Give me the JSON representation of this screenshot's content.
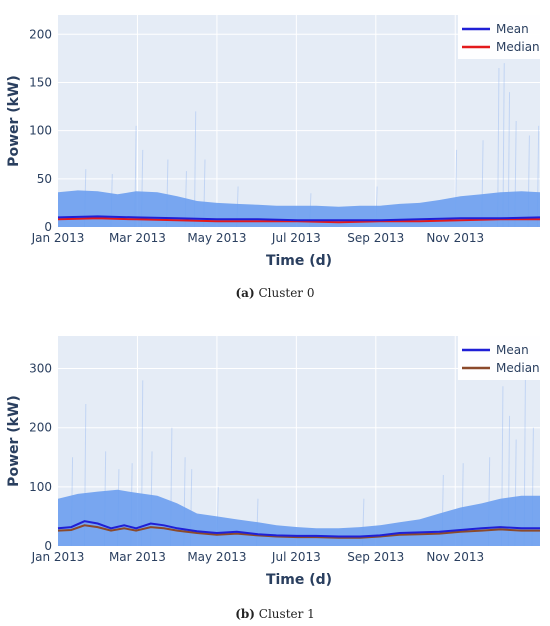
{
  "chart_data": [
    {
      "type": "line",
      "caption_label": "(a)",
      "caption_text": "Cluster 0",
      "xlabel": "Time (d)",
      "ylabel": "Power (kW)",
      "x_ticks": [
        "Jan 2013",
        "Mar 2013",
        "May 2013",
        "Jul 2013",
        "Sep 2013",
        "Nov 2013"
      ],
      "ylim": [
        0,
        220
      ],
      "y_ticks": [
        0,
        50,
        100,
        150,
        200
      ],
      "grid": true,
      "legend_position": "top-right",
      "colors": {
        "band": "#6b9ef0",
        "mean": "#1f1fd6",
        "median": "#e31a1c",
        "plot_bg": "#e5ecf6",
        "spike": "#7fa8f0"
      },
      "band_upper": [
        [
          0,
          36
        ],
        [
          15,
          38
        ],
        [
          30,
          37
        ],
        [
          45,
          34
        ],
        [
          59,
          37
        ],
        [
          75,
          36
        ],
        [
          90,
          32
        ],
        [
          105,
          27
        ],
        [
          120,
          25
        ],
        [
          135,
          24
        ],
        [
          151,
          23
        ],
        [
          165,
          22
        ],
        [
          181,
          22
        ],
        [
          195,
          22
        ],
        [
          212,
          21
        ],
        [
          228,
          22
        ],
        [
          243,
          22
        ],
        [
          258,
          24
        ],
        [
          273,
          25
        ],
        [
          288,
          28
        ],
        [
          304,
          32
        ],
        [
          320,
          34
        ],
        [
          334,
          36
        ],
        [
          350,
          37
        ],
        [
          364,
          36
        ]
      ],
      "spikes": [
        [
          20,
          60
        ],
        [
          40,
          55
        ],
        [
          58,
          105
        ],
        [
          63,
          80
        ],
        [
          82,
          70
        ],
        [
          96,
          58
        ],
        [
          103,
          120
        ],
        [
          110,
          70
        ],
        [
          135,
          42
        ],
        [
          190,
          35
        ],
        [
          240,
          42
        ],
        [
          300,
          80
        ],
        [
          320,
          90
        ],
        [
          332,
          165
        ],
        [
          336,
          170
        ],
        [
          340,
          140
        ],
        [
          345,
          110
        ],
        [
          355,
          95
        ],
        [
          362,
          105
        ]
      ],
      "series": [
        {
          "name": "Mean",
          "values": [
            [
              0,
              10
            ],
            [
              30,
              11
            ],
            [
              59,
              10
            ],
            [
              90,
              9
            ],
            [
              120,
              8
            ],
            [
              151,
              8
            ],
            [
              181,
              7
            ],
            [
              212,
              7
            ],
            [
              243,
              7
            ],
            [
              273,
              8
            ],
            [
              304,
              9
            ],
            [
              334,
              9
            ],
            [
              364,
              10
            ]
          ]
        },
        {
          "name": "Median",
          "values": [
            [
              0,
              8
            ],
            [
              30,
              9
            ],
            [
              59,
              8
            ],
            [
              90,
              7
            ],
            [
              120,
              6
            ],
            [
              151,
              6
            ],
            [
              181,
              6
            ],
            [
              212,
              5
            ],
            [
              243,
              6
            ],
            [
              273,
              6
            ],
            [
              304,
              7
            ],
            [
              334,
              8
            ],
            [
              364,
              8
            ]
          ]
        }
      ]
    },
    {
      "type": "line",
      "caption_label": "(b)",
      "caption_text": "Cluster 1",
      "xlabel": "Time (d)",
      "ylabel": "Power (kW)",
      "x_ticks": [
        "Jan 2013",
        "Mar 2013",
        "May 2013",
        "Jul 2013",
        "Sep 2013",
        "Nov 2013"
      ],
      "ylim": [
        0,
        355
      ],
      "y_ticks": [
        0,
        100,
        200,
        300
      ],
      "grid": true,
      "legend_position": "top-right",
      "colors": {
        "band": "#6b9ef0",
        "mean": "#1f1fd6",
        "median": "#8b4a2b",
        "plot_bg": "#e5ecf6",
        "spike": "#7fa8f0"
      },
      "band_upper": [
        [
          0,
          80
        ],
        [
          15,
          88
        ],
        [
          30,
          92
        ],
        [
          45,
          95
        ],
        [
          59,
          90
        ],
        [
          75,
          85
        ],
        [
          90,
          72
        ],
        [
          105,
          55
        ],
        [
          120,
          50
        ],
        [
          135,
          45
        ],
        [
          151,
          40
        ],
        [
          165,
          35
        ],
        [
          181,
          32
        ],
        [
          195,
          30
        ],
        [
          212,
          30
        ],
        [
          228,
          32
        ],
        [
          243,
          35
        ],
        [
          258,
          40
        ],
        [
          273,
          45
        ],
        [
          288,
          55
        ],
        [
          304,
          65
        ],
        [
          320,
          72
        ],
        [
          334,
          80
        ],
        [
          350,
          85
        ],
        [
          364,
          85
        ]
      ],
      "spikes": [
        [
          10,
          150
        ],
        [
          20,
          240
        ],
        [
          35,
          160
        ],
        [
          45,
          130
        ],
        [
          55,
          140
        ],
        [
          63,
          280
        ],
        [
          70,
          160
        ],
        [
          85,
          200
        ],
        [
          95,
          150
        ],
        [
          100,
          130
        ],
        [
          120,
          100
        ],
        [
          150,
          80
        ],
        [
          230,
          80
        ],
        [
          290,
          120
        ],
        [
          305,
          140
        ],
        [
          325,
          150
        ],
        [
          335,
          270
        ],
        [
          340,
          220
        ],
        [
          345,
          180
        ],
        [
          352,
          290
        ],
        [
          358,
          200
        ]
      ],
      "series": [
        {
          "name": "Mean",
          "values": [
            [
              0,
              30
            ],
            [
              10,
              32
            ],
            [
              20,
              42
            ],
            [
              30,
              38
            ],
            [
              40,
              30
            ],
            [
              50,
              35
            ],
            [
              59,
              30
            ],
            [
              70,
              38
            ],
            [
              80,
              35
            ],
            [
              90,
              30
            ],
            [
              105,
              25
            ],
            [
              120,
              22
            ],
            [
              135,
              24
            ],
            [
              151,
              20
            ],
            [
              165,
              18
            ],
            [
              181,
              17
            ],
            [
              195,
              17
            ],
            [
              212,
              16
            ],
            [
              228,
              16
            ],
            [
              243,
              18
            ],
            [
              258,
              22
            ],
            [
              273,
              23
            ],
            [
              288,
              24
            ],
            [
              304,
              27
            ],
            [
              320,
              30
            ],
            [
              334,
              32
            ],
            [
              350,
              30
            ],
            [
              364,
              30
            ]
          ]
        },
        {
          "name": "Median",
          "values": [
            [
              0,
              26
            ],
            [
              10,
              27
            ],
            [
              20,
              35
            ],
            [
              30,
              32
            ],
            [
              40,
              26
            ],
            [
              50,
              30
            ],
            [
              59,
              26
            ],
            [
              70,
              32
            ],
            [
              80,
              30
            ],
            [
              90,
              26
            ],
            [
              105,
              22
            ],
            [
              120,
              19
            ],
            [
              135,
              21
            ],
            [
              151,
              18
            ],
            [
              165,
              16
            ],
            [
              181,
              15
            ],
            [
              195,
              15
            ],
            [
              212,
              14
            ],
            [
              228,
              14
            ],
            [
              243,
              16
            ],
            [
              258,
              19
            ],
            [
              273,
              20
            ],
            [
              288,
              21
            ],
            [
              304,
              24
            ],
            [
              320,
              26
            ],
            [
              334,
              28
            ],
            [
              350,
              26
            ],
            [
              364,
              26
            ]
          ]
        }
      ]
    }
  ]
}
